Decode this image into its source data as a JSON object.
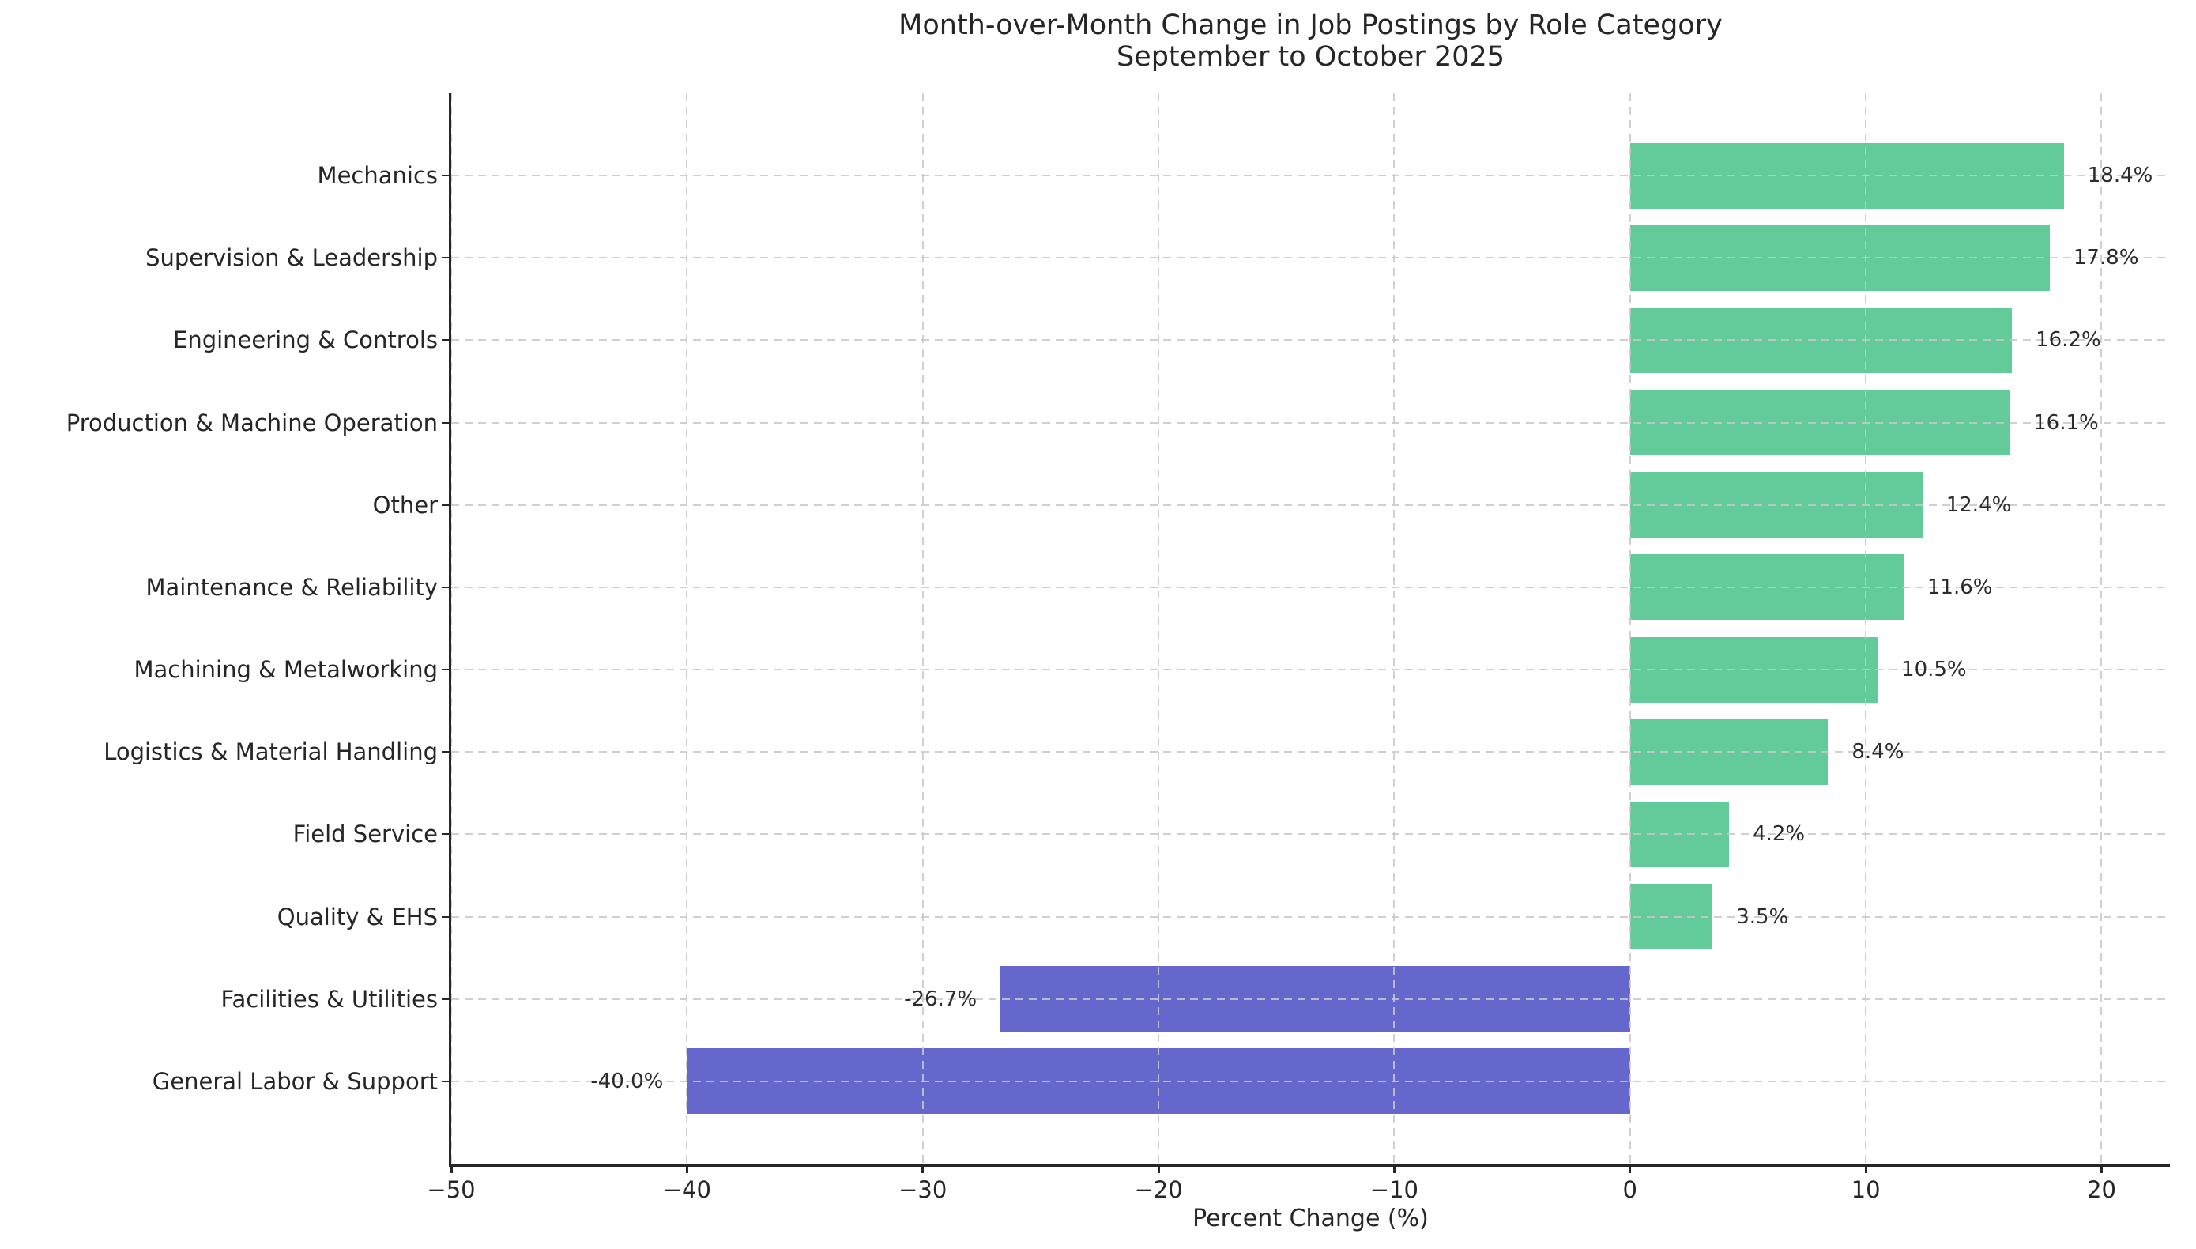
{
  "chart_data": {
    "type": "bar",
    "orientation": "horizontal",
    "title": "Month-over-Month Change in Job Postings by Role Category",
    "subtitle": "September to October 2025",
    "xlabel": "Percent Change (%)",
    "ylabel": "",
    "categories": [
      "Mechanics",
      "Supervision & Leadership",
      "Engineering & Controls",
      "Production & Machine Operation",
      "Other",
      "Maintenance & Reliability",
      "Machining & Metalworking",
      "Logistics & Material Handling",
      "Field Service",
      "Quality & EHS",
      "Facilities & Utilities",
      "General Labor & Support"
    ],
    "values": [
      18.4,
      17.8,
      16.2,
      16.1,
      12.4,
      11.6,
      10.5,
      8.4,
      4.2,
      3.5,
      -26.7,
      -40.0
    ],
    "bar_labels": [
      "18.4%",
      "17.8%",
      "16.2%",
      "16.1%",
      "12.4%",
      "11.6%",
      "10.5%",
      "8.4%",
      "4.2%",
      "3.5%",
      "-26.7%",
      "-40.0%"
    ],
    "xticks": [
      -50,
      -40,
      -30,
      -20,
      -10,
      0,
      10,
      20
    ],
    "xtick_labels": [
      "−50",
      "−40",
      "−30",
      "−20",
      "−10",
      "0",
      "10",
      "20"
    ],
    "xlim": [
      -50,
      22.9
    ],
    "grid": {
      "style": "dashed",
      "axes": "both",
      "on": true
    },
    "legend": "none",
    "colors": {
      "positive_bar": "#63cb99",
      "negative_bar": "#6667cc",
      "grid": "#c8c8c8",
      "axis": "#262626",
      "text": "#262626",
      "background": "#ffffff"
    }
  }
}
